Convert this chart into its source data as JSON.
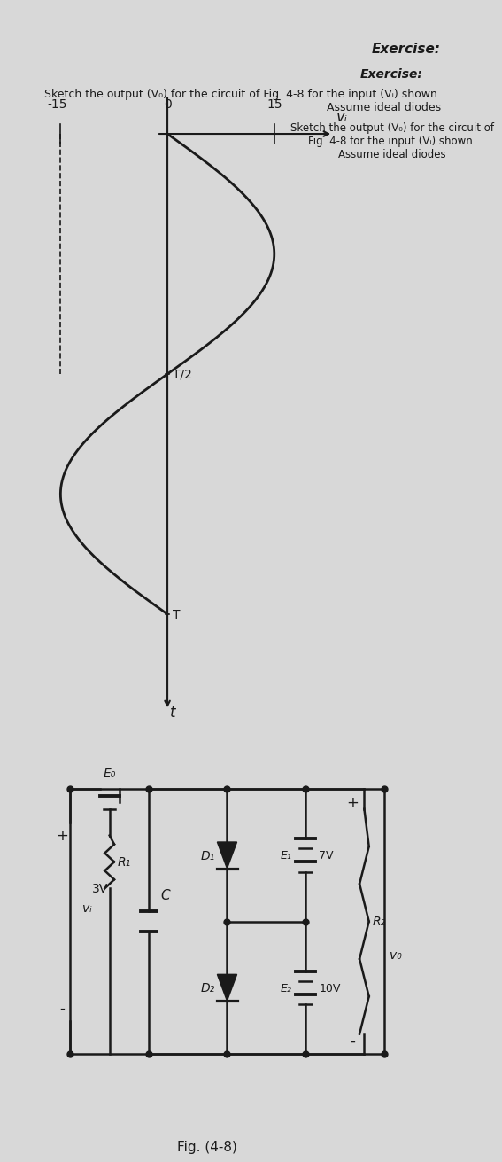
{
  "title_exercise": "Exercise:",
  "title_desc": "Sketch the output (V₀) for the circuit of Fig. 4-8 for the input (Vᵢ) shown. Assume ideal diodes",
  "fig_label": "Fig. (4-8)",
  "sine_amplitude": 15,
  "sine_period": 1,
  "y_label_vi": "vᵢ",
  "x_label_t": "t",
  "tick_15": "15",
  "tick_neg15": "-15",
  "tick_0": "0",
  "tick_T2": "T/2",
  "tick_T": "T",
  "bg_color": "#d8d8d8",
  "circuit_E0": "E₀",
  "circuit_R1": "R₁",
  "circuit_C": "C",
  "circuit_D1": "D₁",
  "circuit_D2": "D₂",
  "circuit_E1": "E₁",
  "circuit_E1_val": "7V",
  "circuit_E2": "E₂",
  "circuit_E2_val": "10V",
  "circuit_R2": "R₂",
  "circuit_Vi": "3V",
  "circuit_Vi_label": "vᵢ",
  "circuit_Vo": "v₀",
  "line_color": "#1a1a1a",
  "text_color": "#1a1a1a"
}
